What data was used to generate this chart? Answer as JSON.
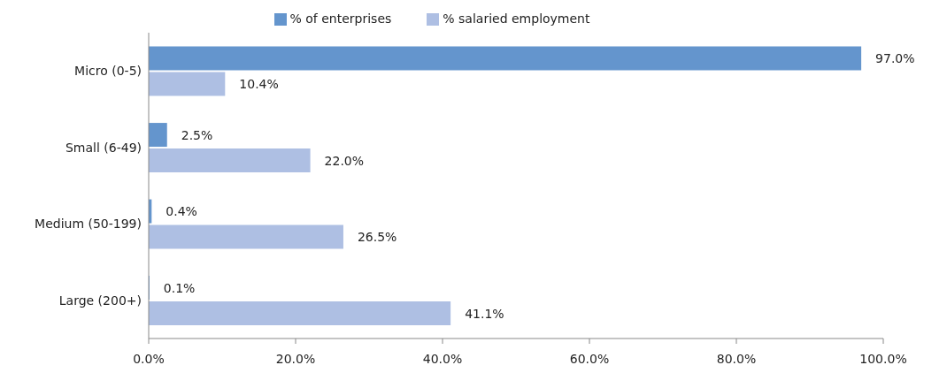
{
  "chart_data": {
    "type": "bar",
    "orientation": "horizontal",
    "categories": [
      "Micro (0-5)",
      "Small (6-49)",
      "Medium (50-199)",
      "Large (200+)"
    ],
    "series": [
      {
        "name": "% of enterprises",
        "color": "#6495cd",
        "values": [
          97.0,
          2.5,
          0.4,
          0.1
        ],
        "value_labels": [
          "97.0%",
          "2.5%",
          "0.4%",
          "0.1%"
        ]
      },
      {
        "name": "% salaried employment",
        "color": "#aebfe3",
        "values": [
          10.4,
          22.0,
          26.5,
          41.1
        ],
        "value_labels": [
          "10.4%",
          "22.0%",
          "26.5%",
          "41.1%"
        ]
      }
    ],
    "xlim": [
      0,
      100
    ],
    "xticks": [
      {
        "value": 0,
        "label": "0.0%"
      },
      {
        "value": 20,
        "label": "20.0%"
      },
      {
        "value": 40,
        "label": "40.0%"
      },
      {
        "value": 60,
        "label": "60.0%"
      },
      {
        "value": 80,
        "label": "80.0%"
      },
      {
        "value": 100,
        "label": "100.0%"
      }
    ],
    "legend": "top",
    "grid": false
  }
}
